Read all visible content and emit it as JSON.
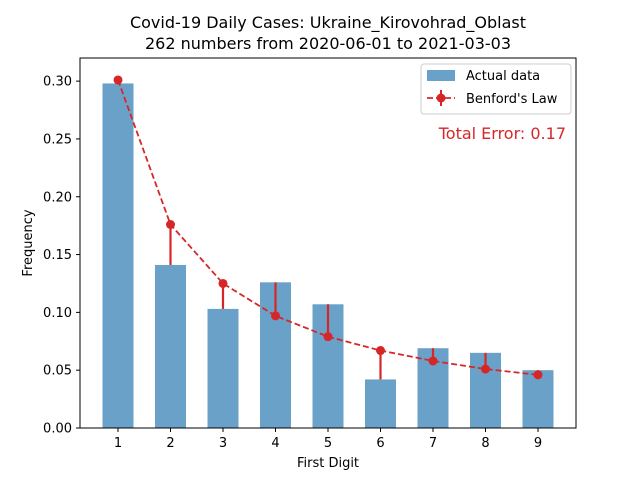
{
  "chart_data": {
    "type": "bar",
    "title": "Covid-19 Daily Cases: Ukraine_Kirovohrad_Oblast",
    "subtitle": "262 numbers from 2020-06-01 to 2021-03-03",
    "xlabel": "First Digit",
    "ylabel": "Frequency",
    "categories": [
      "1",
      "2",
      "3",
      "4",
      "5",
      "6",
      "7",
      "8",
      "9"
    ],
    "ylim": [
      0,
      0.32
    ],
    "yticks": [
      "0.00",
      "0.05",
      "0.10",
      "0.15",
      "0.20",
      "0.25",
      "0.30"
    ],
    "series": [
      {
        "name": "Actual data",
        "type": "bar",
        "color": "#6aa1c8",
        "values": [
          0.298,
          0.141,
          0.103,
          0.126,
          0.107,
          0.042,
          0.069,
          0.065,
          0.05
        ]
      },
      {
        "name": "Benford's Law",
        "type": "line",
        "color": "#d62728",
        "values": [
          0.301,
          0.176,
          0.125,
          0.097,
          0.079,
          0.067,
          0.058,
          0.051,
          0.046
        ]
      }
    ],
    "annotation": "Total Error: 0.17",
    "legend_position": "top-right",
    "grid": false
  }
}
